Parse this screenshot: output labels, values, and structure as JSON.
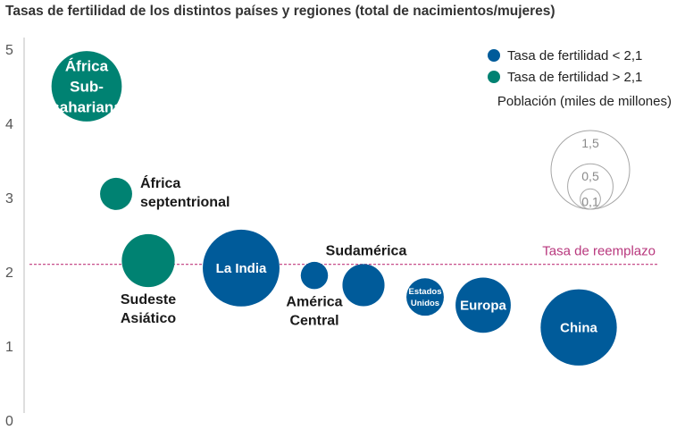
{
  "chart_data": {
    "type": "scatter",
    "title": "Tasas de fertilidad de los distintos países y regiones (total de nacimientos/mujeres)",
    "ylim": [
      0,
      5
    ],
    "yticks": [
      0,
      1,
      2,
      3,
      4,
      5
    ],
    "grid": false,
    "legend_position": "top-right",
    "colors": {
      "below": "#005b9a",
      "above": "#008272",
      "reference": "#c0397f"
    },
    "legend": {
      "below": "Tasa de fertilidad < 2,1",
      "above": "Tasa de fertilidad > 2,1",
      "size_title": "Población (miles de millones)",
      "sizes": [
        {
          "value": 1.5,
          "label": "1,5"
        },
        {
          "value": 0.5,
          "label": "0,5"
        },
        {
          "value": 0.1,
          "label": "0,1"
        }
      ]
    },
    "reference_line": {
      "value": 2.1,
      "label": "Tasa de reemplazo"
    },
    "points": [
      {
        "name": "África Sub-sahariana",
        "lines": [
          "África",
          "Sub-",
          "sahariana"
        ],
        "y": 4.5,
        "population": 1.2,
        "group": "above",
        "label_pos": "inside",
        "font": 17
      },
      {
        "name": "África septentrional",
        "lines": [
          "África",
          "septentrional"
        ],
        "y": 3.05,
        "population": 0.25,
        "group": "above",
        "label_pos": "right"
      },
      {
        "name": "Sudeste Asiático",
        "lines": [
          "Sudeste",
          "Asiático"
        ],
        "y": 2.15,
        "population": 0.68,
        "group": "above",
        "label_pos": "below"
      },
      {
        "name": "La India",
        "lines": [
          "La India"
        ],
        "y": 2.05,
        "population": 1.43,
        "group": "below",
        "label_pos": "inside",
        "font": 15
      },
      {
        "name": "América Central",
        "lines": [
          "América",
          "Central"
        ],
        "y": 1.95,
        "population": 0.18,
        "group": "below",
        "label_pos": "below"
      },
      {
        "name": "Sudamérica",
        "lines": [
          "Sudamérica"
        ],
        "y": 1.82,
        "population": 0.43,
        "group": "below",
        "label_pos": "above"
      },
      {
        "name": "Estados Unidos",
        "lines": [
          "Estados",
          "Unidos"
        ],
        "y": 1.66,
        "population": 0.34,
        "group": "below",
        "label_pos": "inside",
        "font": 9.5
      },
      {
        "name": "Europa",
        "lines": [
          "Europa"
        ],
        "y": 1.55,
        "population": 0.74,
        "group": "below",
        "label_pos": "inside",
        "font": 15
      },
      {
        "name": "China",
        "lines": [
          "China"
        ],
        "y": 1.25,
        "population": 1.41,
        "group": "below",
        "label_pos": "inside",
        "font": 15
      }
    ]
  }
}
